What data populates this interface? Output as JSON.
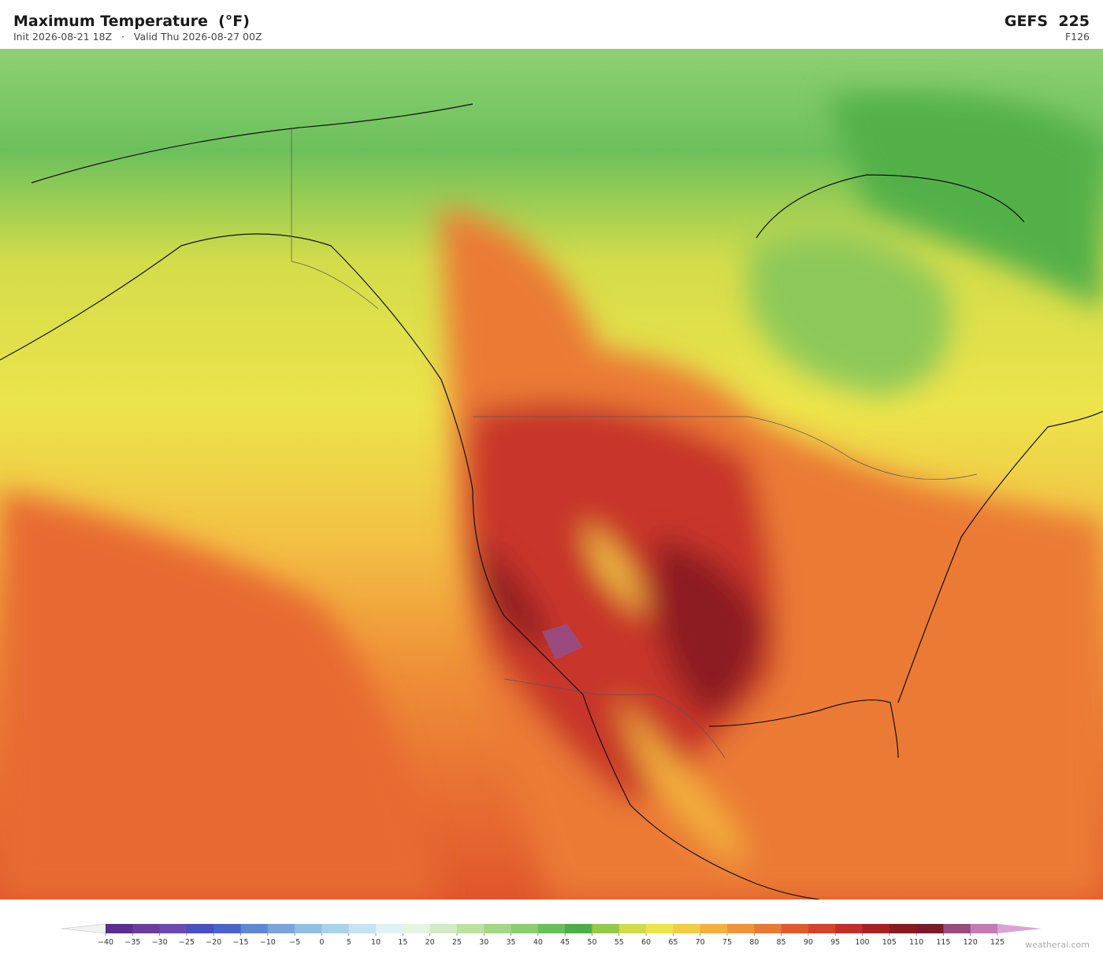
{
  "header": {
    "title": "Maximum Temperature  (°F)",
    "init": "Init 2026-08-21 18Z",
    "separator": "·",
    "valid": "Valid Thu 2026-08-27 00Z",
    "model": "GEFS  225",
    "forecast_hour": "F126"
  },
  "colorbar": {
    "ticks": [
      {
        "value": -40,
        "label": "−40"
      },
      {
        "value": -35,
        "label": "−35"
      },
      {
        "value": -30,
        "label": "−30"
      },
      {
        "value": -25,
        "label": "−25"
      },
      {
        "value": -20,
        "label": "−20"
      },
      {
        "value": -15,
        "label": "−15"
      },
      {
        "value": -10,
        "label": "−10"
      },
      {
        "value": -5,
        "label": "−5"
      },
      0,
      5,
      10,
      15,
      20,
      25,
      30,
      35,
      40,
      45,
      50,
      55,
      60,
      65,
      70,
      75,
      80,
      85,
      90,
      95,
      100,
      105,
      110,
      115,
      120,
      125
    ],
    "colors": [
      "#5b2d8e",
      "#6b3c9c",
      "#6a4bb0",
      "#4a4fc2",
      "#4b62cc",
      "#5f88d2",
      "#7ba4dc",
      "#92c0e4",
      "#aad3eb",
      "#c5e3f1",
      "#e0f1f5",
      "#e6f4e2",
      "#d2ebc6",
      "#bce2a1",
      "#a2d785",
      "#8ace6f",
      "#68bf5b",
      "#4dae49",
      "#96c84a",
      "#cfdb49",
      "#ece44b",
      "#f4cb45",
      "#f2b03d",
      "#f09439",
      "#eb7934",
      "#e15a2d",
      "#d6432a",
      "#c22f28",
      "#a72024",
      "#8a1a20",
      "#7a1a26",
      "#9b4a7d",
      "#c67ab2"
    ],
    "under_color": "#f2f2f2",
    "over_color": "#d9a4d3"
  },
  "watermark": "weatherai.com"
}
